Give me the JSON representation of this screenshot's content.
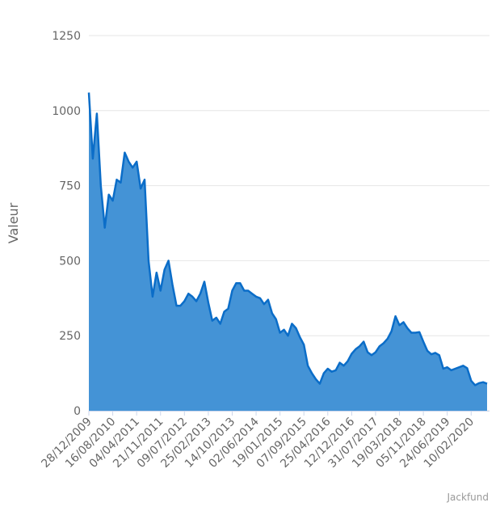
{
  "chart_data": {
    "type": "area",
    "y_axis_label": "Valeur",
    "credit": "Jackfund",
    "color": "#0b6dc8",
    "fill": "#4493d6",
    "grid": true,
    "ylim": [
      0,
      1250
    ],
    "yticks": [
      0,
      250,
      500,
      750,
      1000,
      1250
    ],
    "categories": [
      "28/12/2009",
      null,
      null,
      null,
      null,
      null,
      "16/08/2010",
      null,
      null,
      null,
      null,
      null,
      "04/04/2011",
      null,
      null,
      null,
      null,
      null,
      "21/11/2011",
      null,
      null,
      null,
      null,
      null,
      "09/07/2012",
      null,
      null,
      null,
      null,
      null,
      "25/02/2013",
      null,
      null,
      null,
      null,
      null,
      "14/10/2013",
      null,
      null,
      null,
      null,
      null,
      "02/06/2014",
      null,
      null,
      null,
      null,
      null,
      "19/01/2015",
      null,
      null,
      null,
      null,
      null,
      "07/09/2015",
      null,
      null,
      null,
      null,
      null,
      "25/04/2016",
      null,
      null,
      null,
      null,
      null,
      "12/12/2016",
      null,
      null,
      null,
      null,
      null,
      "31/07/2017",
      null,
      null,
      null,
      null,
      null,
      "19/03/2018",
      null,
      null,
      null,
      null,
      null,
      "05/11/2018",
      null,
      null,
      null,
      null,
      null,
      "24/06/2019",
      null,
      null,
      null,
      null,
      null,
      "10/02/2020",
      null,
      null,
      null,
      null
    ],
    "values": [
      1060,
      840,
      990,
      750,
      610,
      720,
      700,
      770,
      760,
      860,
      830,
      810,
      830,
      740,
      770,
      500,
      380,
      460,
      400,
      470,
      500,
      420,
      350,
      350,
      365,
      390,
      380,
      365,
      390,
      430,
      360,
      300,
      310,
      290,
      330,
      340,
      400,
      425,
      425,
      400,
      400,
      390,
      380,
      375,
      355,
      370,
      325,
      305,
      260,
      270,
      250,
      290,
      275,
      245,
      220,
      150,
      125,
      105,
      90,
      125,
      140,
      130,
      135,
      160,
      150,
      165,
      190,
      205,
      215,
      230,
      195,
      185,
      195,
      215,
      225,
      240,
      265,
      315,
      285,
      295,
      275,
      260,
      260,
      262,
      230,
      200,
      188,
      193,
      185,
      140,
      145,
      135,
      140,
      145,
      150,
      142,
      100,
      85,
      92,
      95,
      90
    ]
  }
}
